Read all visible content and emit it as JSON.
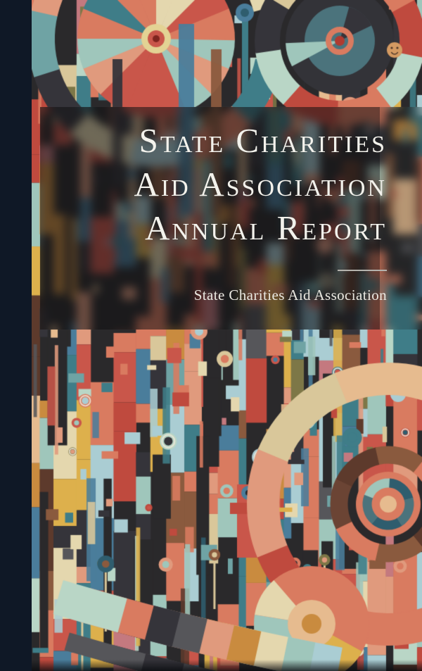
{
  "cover": {
    "title": "State Charities Aid Association Annual Report",
    "title_lines": [
      "State Charities",
      "Aid Association",
      "Annual Report"
    ],
    "author": "State Charities Aid Association",
    "colors": {
      "spine": "#0f1826",
      "art_background": "#2a292b",
      "band_overlay": "rgba(14,15,16,0.55)",
      "band_overlay_right": "rgba(20,21,22,0.22)",
      "title_text": "#f3f2ec",
      "author_text": "#eae8e1",
      "divider": "#b5b3ad",
      "palette": [
        "#c9564a",
        "#d97b60",
        "#e09a7d",
        "#e6bb8f",
        "#bf4a3e",
        "#3f7d88",
        "#6fa3a4",
        "#9fc6bb",
        "#aacdd3",
        "#4a7d9b",
        "#2f5d6e",
        "#d9c79a",
        "#e4d7ae",
        "#7d7747",
        "#8a5a3e",
        "#5d3a2c",
        "#c98b3f",
        "#ddb04c",
        "#c4797f",
        "#56565a",
        "#35343a",
        "#b9d6c6"
      ]
    }
  }
}
